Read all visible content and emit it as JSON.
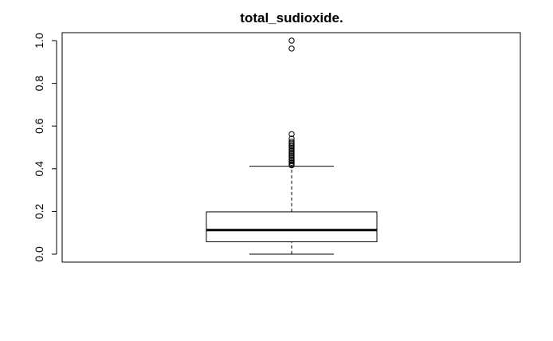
{
  "chart_data": {
    "type": "boxplot",
    "title": "total_sudioxide.",
    "xlabel": "",
    "ylabel": "",
    "ylim": [
      -0.025,
      1.04
    ],
    "yticks": [
      0.0,
      0.2,
      0.4,
      0.6,
      0.8,
      1.0
    ],
    "ytick_labels": [
      "0.0",
      "0.2",
      "0.4",
      "0.6",
      "0.8",
      "1.0"
    ],
    "grid": false,
    "box": {
      "whisker_low": 0.0,
      "q1": 0.058,
      "median": 0.113,
      "q3": 0.198,
      "whisker_high": 0.412
    },
    "outliers": [
      1.0,
      0.963,
      0.562,
      0.541,
      0.527,
      0.519,
      0.512,
      0.505,
      0.498,
      0.491,
      0.484,
      0.477,
      0.47,
      0.463,
      0.456,
      0.449,
      0.442,
      0.435,
      0.428,
      0.421,
      0.416
    ],
    "colors": {
      "line": "#000000",
      "background": "#ffffff"
    }
  }
}
